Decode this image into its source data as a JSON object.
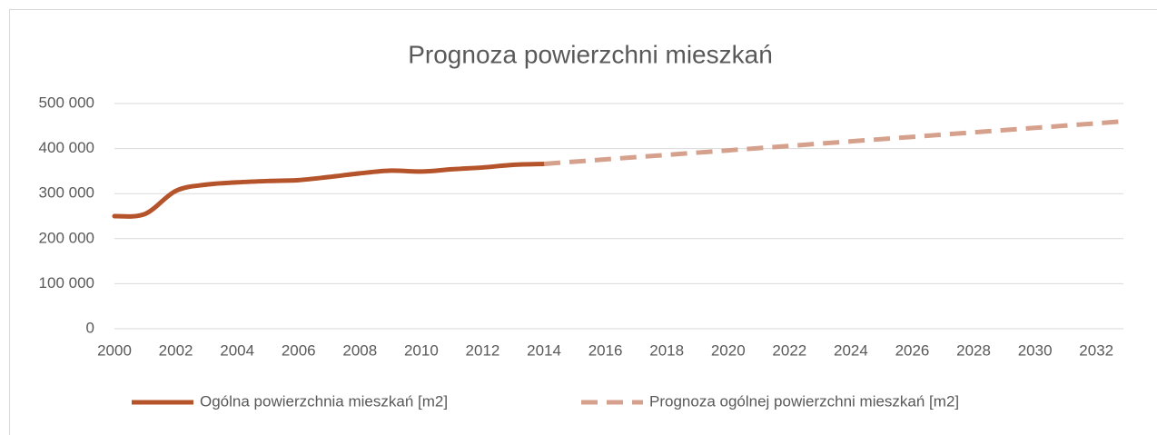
{
  "chart_data": {
    "type": "line",
    "title": "Prognoza powierzchni mieszkań",
    "x": [
      2000,
      2001,
      2002,
      2003,
      2004,
      2005,
      2006,
      2007,
      2008,
      2009,
      2010,
      2011,
      2012,
      2013,
      2014,
      2015,
      2016,
      2017,
      2018,
      2019,
      2020,
      2021,
      2022,
      2023,
      2024,
      2025,
      2026,
      2027,
      2028,
      2029,
      2030,
      2031,
      2032,
      2033
    ],
    "series": [
      {
        "name": "Ogólna powierzchnia mieszkań [m2]",
        "color": "#b5532a",
        "dash": false,
        "values": [
          250000,
          255000,
          306000,
          320000,
          325000,
          328000,
          330000,
          337000,
          345000,
          351000,
          349000,
          354000,
          358000,
          364000,
          366000,
          null,
          null,
          null,
          null,
          null,
          null,
          null,
          null,
          null,
          null,
          null,
          null,
          null,
          null,
          null,
          null,
          null,
          null,
          null
        ]
      },
      {
        "name": "Prognoza ogólnej powierzchni mieszkań [m2]",
        "color": "#d5a08c",
        "dash": true,
        "values": [
          null,
          null,
          null,
          null,
          null,
          null,
          null,
          null,
          null,
          null,
          null,
          null,
          null,
          null,
          366000,
          371000,
          376000,
          381000,
          386000,
          391000,
          396000,
          401000,
          406000,
          411000,
          416000,
          421000,
          426000,
          431000,
          436000,
          441000,
          446000,
          451000,
          456000,
          461000
        ]
      }
    ],
    "xlim": [
      2000,
      2033
    ],
    "xticks": [
      2000,
      2002,
      2004,
      2006,
      2008,
      2010,
      2012,
      2014,
      2016,
      2018,
      2020,
      2022,
      2024,
      2026,
      2028,
      2030,
      2032
    ],
    "ylim": [
      0,
      500000
    ],
    "yticks": [
      0,
      {
        "value": 100000,
        "label": "100 000"
      },
      {
        "value": 200000,
        "label": "200 000"
      },
      {
        "value": 300000,
        "label": "300 000"
      },
      {
        "value": 400000,
        "label": "400 000"
      },
      {
        "value": 500000,
        "label": "500 000"
      }
    ],
    "grid": true,
    "legend": "bottom"
  }
}
